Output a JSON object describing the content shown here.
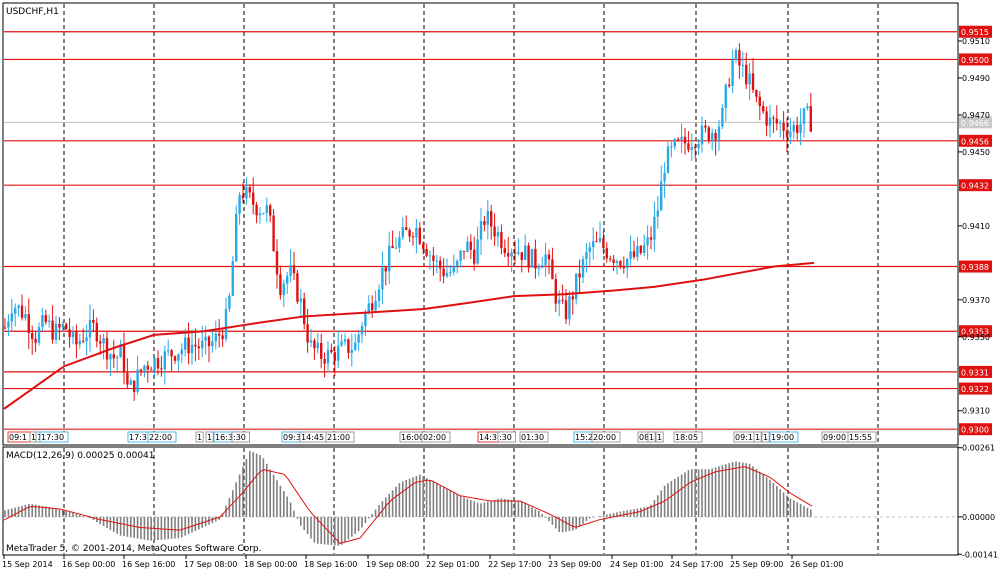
{
  "window": {
    "title": "USDCHF,H1",
    "copyright": "MetaTrader 5, © 2001-2014, MetaQuotes Software Corp."
  },
  "chart_data": [
    {
      "type": "candlestick",
      "title": "USDCHF,H1",
      "ylim": [
        0.9292,
        0.953
      ],
      "price_ticks": [
        "0.9510",
        "0.9490",
        "0.9470",
        "0.9450",
        "0.9410",
        "0.9370",
        "0.9350",
        "0.9310"
      ],
      "price_tick_values": [
        0.951,
        0.949,
        0.947,
        0.945,
        0.941,
        0.937,
        0.935,
        0.931
      ],
      "current_price_label": "0.9466",
      "current_price": 0.9466,
      "hlines": [
        {
          "label": "0.9515",
          "value": 0.9515
        },
        {
          "label": "0.9500",
          "value": 0.95
        },
        {
          "label": "0.9456",
          "value": 0.9456
        },
        {
          "label": "0.9432",
          "value": 0.9432
        },
        {
          "label": "0.9388",
          "value": 0.9388
        },
        {
          "label": "0.9353",
          "value": 0.9353
        },
        {
          "label": "0.9331",
          "value": 0.9331
        },
        {
          "label": "0.9322",
          "value": 0.9322
        },
        {
          "label": "0.9300",
          "value": 0.93
        }
      ],
      "moving_average": [
        [
          0,
          0.9311
        ],
        [
          60,
          0.9334
        ],
        [
          110,
          0.9344
        ],
        [
          150,
          0.9351
        ],
        [
          200,
          0.9353
        ],
        [
          260,
          0.9358
        ],
        [
          300,
          0.9361
        ],
        [
          360,
          0.9363
        ],
        [
          420,
          0.9365
        ],
        [
          460,
          0.9368
        ],
        [
          510,
          0.9372
        ],
        [
          560,
          0.9373
        ],
        [
          610,
          0.9375
        ],
        [
          650,
          0.9377
        ],
        [
          700,
          0.9381
        ],
        [
          740,
          0.9385
        ],
        [
          770,
          0.9388
        ],
        [
          810,
          0.939
        ]
      ],
      "candle_anchors": [
        [
          5,
          0.9355
        ],
        [
          12,
          0.9368
        ],
        [
          25,
          0.9362
        ],
        [
          35,
          0.935
        ],
        [
          45,
          0.9358
        ],
        [
          55,
          0.9352
        ],
        [
          65,
          0.9356
        ],
        [
          75,
          0.9345
        ],
        [
          85,
          0.9352
        ],
        [
          95,
          0.9355
        ],
        [
          105,
          0.9345
        ],
        [
          115,
          0.9338
        ],
        [
          122,
          0.9342
        ],
        [
          128,
          0.932
        ],
        [
          134,
          0.9325
        ],
        [
          145,
          0.9335
        ],
        [
          160,
          0.9338
        ],
        [
          175,
          0.9342
        ],
        [
          190,
          0.9346
        ],
        [
          205,
          0.9344
        ],
        [
          215,
          0.9348
        ],
        [
          225,
          0.9356
        ],
        [
          230,
          0.9372
        ],
        [
          235,
          0.9405
        ],
        [
          240,
          0.943
        ],
        [
          248,
          0.9425
        ],
        [
          258,
          0.942
        ],
        [
          268,
          0.9418
        ],
        [
          275,
          0.9395
        ],
        [
          280,
          0.9378
        ],
        [
          290,
          0.9385
        ],
        [
          300,
          0.937
        ],
        [
          310,
          0.9345
        ],
        [
          320,
          0.934
        ],
        [
          330,
          0.934
        ],
        [
          345,
          0.9344
        ],
        [
          355,
          0.9345
        ],
        [
          362,
          0.9358
        ],
        [
          372,
          0.937
        ],
        [
          382,
          0.9385
        ],
        [
          395,
          0.94
        ],
        [
          405,
          0.9405
        ],
        [
          415,
          0.941
        ],
        [
          425,
          0.94
        ],
        [
          435,
          0.939
        ],
        [
          445,
          0.9385
        ],
        [
          455,
          0.9385
        ],
        [
          465,
          0.94
        ],
        [
          475,
          0.9395
        ],
        [
          485,
          0.9415
        ],
        [
          495,
          0.9408
        ],
        [
          505,
          0.94
        ],
        [
          515,
          0.9398
        ],
        [
          525,
          0.9395
        ],
        [
          535,
          0.939
        ],
        [
          545,
          0.9395
        ],
        [
          552,
          0.938
        ],
        [
          558,
          0.9368
        ],
        [
          565,
          0.9362
        ],
        [
          572,
          0.9372
        ],
        [
          580,
          0.9385
        ],
        [
          590,
          0.9398
        ],
        [
          600,
          0.94
        ],
        [
          610,
          0.9395
        ],
        [
          620,
          0.9392
        ],
        [
          630,
          0.9392
        ],
        [
          640,
          0.9395
        ],
        [
          650,
          0.9402
        ],
        [
          658,
          0.942
        ],
        [
          665,
          0.9445
        ],
        [
          675,
          0.9452
        ],
        [
          685,
          0.9455
        ],
        [
          695,
          0.9458
        ],
        [
          705,
          0.946
        ],
        [
          715,
          0.9462
        ],
        [
          722,
          0.9468
        ],
        [
          728,
          0.9488
        ],
        [
          734,
          0.9502
        ],
        [
          740,
          0.9496
        ],
        [
          748,
          0.949
        ],
        [
          755,
          0.9478
        ],
        [
          762,
          0.9472
        ],
        [
          770,
          0.9466
        ],
        [
          780,
          0.9465
        ],
        [
          790,
          0.9462
        ],
        [
          800,
          0.9465
        ],
        [
          806,
          0.947
        ],
        [
          812,
          0.9466
        ]
      ],
      "time_labels": [
        "15 Sep 2014",
        "16 Sep 00:00",
        "16 Sep 16:00",
        "17 Sep 08:00",
        "18 Sep 00:00",
        "18 Sep 16:00",
        "19 Sep 08:00",
        "22 Sep 01:00",
        "22 Sep 17:00",
        "23 Sep 09:00",
        "24 Sep 01:00",
        "24 Sep 17:00",
        "25 Sep 09:00",
        "26 Sep 01:00"
      ],
      "event_labels": [
        "09:1",
        "1",
        "1",
        "17:30",
        "17:3",
        "22:00",
        "1",
        "1",
        "16:30",
        ":30",
        "09:3",
        "14:45",
        "21:00",
        "16:00",
        "02:00",
        "14:30",
        ":30",
        "01:30",
        "15:2",
        "20:00",
        "08",
        "1",
        "1",
        "18:05",
        "09:1",
        "1",
        "1",
        "19:00",
        "09:00",
        "15:55"
      ]
    },
    {
      "type": "histogram",
      "title": "MACD(12,26,9) 0.00025 0.00041",
      "ylim": [
        -0.0014,
        0.0026
      ],
      "ticks": [
        "0.00261",
        "0.00000",
        "-0.00141"
      ],
      "tick_values": [
        0.00261,
        0.0,
        -0.00141
      ],
      "macd_anchors": [
        [
          0,
          0.0002
        ],
        [
          30,
          0.0005
        ],
        [
          60,
          0.0003
        ],
        [
          90,
          -5e-05
        ],
        [
          120,
          -0.0007
        ],
        [
          150,
          -0.0009
        ],
        [
          180,
          -0.0008
        ],
        [
          220,
          -0.0001
        ],
        [
          235,
          0.0012
        ],
        [
          250,
          0.0025
        ],
        [
          262,
          0.0023
        ],
        [
          275,
          0.0015
        ],
        [
          290,
          0.0006
        ],
        [
          300,
          -0.0003
        ],
        [
          315,
          -0.001
        ],
        [
          340,
          -0.0011
        ],
        [
          360,
          -0.0005
        ],
        [
          380,
          0.0005
        ],
        [
          400,
          0.0013
        ],
        [
          420,
          0.0016
        ],
        [
          440,
          0.0012
        ],
        [
          460,
          0.0008
        ],
        [
          480,
          0.0005
        ],
        [
          500,
          0.0007
        ],
        [
          520,
          0.0006
        ],
        [
          540,
          0.0002
        ],
        [
          560,
          -0.0006
        ],
        [
          575,
          -0.0005
        ],
        [
          590,
          -5e-05
        ],
        [
          620,
          0.0002
        ],
        [
          650,
          0.0004
        ],
        [
          665,
          0.0012
        ],
        [
          690,
          0.0018
        ],
        [
          710,
          0.0018
        ],
        [
          735,
          0.0021
        ],
        [
          750,
          0.002
        ],
        [
          770,
          0.0014
        ],
        [
          790,
          0.0007
        ],
        [
          812,
          0.00025
        ]
      ],
      "signal_anchors": [
        [
          0,
          -0.0002
        ],
        [
          30,
          0.0004
        ],
        [
          60,
          0.0003
        ],
        [
          100,
          -0.0001
        ],
        [
          140,
          -0.0004
        ],
        [
          180,
          -0.0005
        ],
        [
          220,
          0.0
        ],
        [
          240,
          0.0008
        ],
        [
          262,
          0.0018
        ],
        [
          285,
          0.0016
        ],
        [
          310,
          0.0002
        ],
        [
          340,
          -0.001
        ],
        [
          360,
          -0.0008
        ],
        [
          390,
          0.0006
        ],
        [
          415,
          0.0013
        ],
        [
          430,
          0.0014
        ],
        [
          460,
          0.0008
        ],
        [
          490,
          0.0006
        ],
        [
          520,
          0.0006
        ],
        [
          550,
          0.0001
        ],
        [
          575,
          -0.0004
        ],
        [
          600,
          -0.0001
        ],
        [
          640,
          0.0002
        ],
        [
          665,
          0.0006
        ],
        [
          690,
          0.0013
        ],
        [
          715,
          0.0017
        ],
        [
          745,
          0.0019
        ],
        [
          770,
          0.0015
        ],
        [
          790,
          0.0009
        ],
        [
          812,
          0.00041
        ]
      ]
    }
  ]
}
